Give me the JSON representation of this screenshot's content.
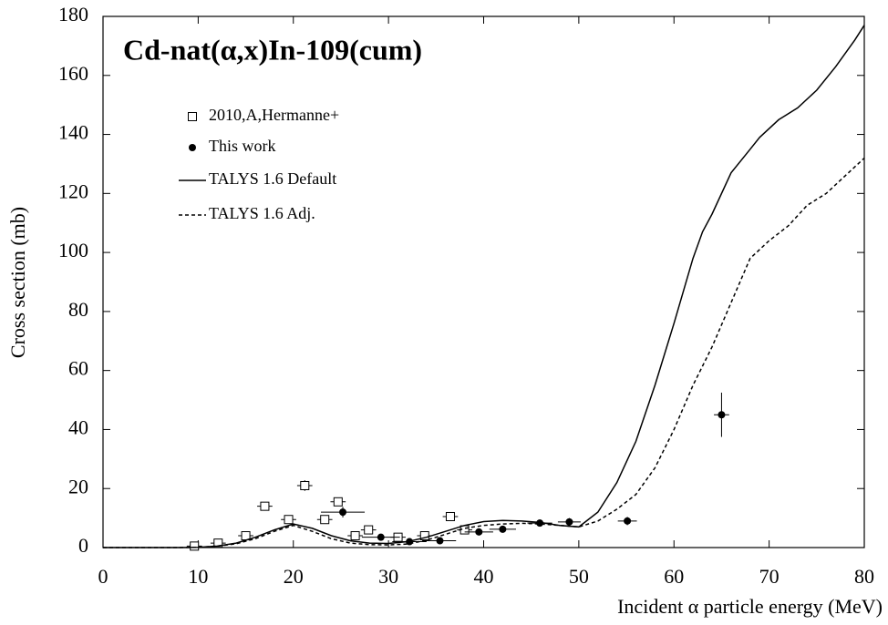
{
  "chart_data": {
    "type": "scatter",
    "title": "Cd-nat(α,x)In-109(cum)",
    "xlabel": "Incident α particle energy (MeV)",
    "ylabel": "Cross section (mb)",
    "xlim": [
      0,
      80
    ],
    "ylim": [
      0,
      180
    ],
    "xticks": [
      0,
      10,
      20,
      30,
      40,
      50,
      60,
      70,
      80
    ],
    "yticks": [
      0,
      20,
      40,
      60,
      80,
      100,
      120,
      140,
      160,
      180
    ],
    "legend": "upper left",
    "series": [
      {
        "name": "2010,A,Hermanne+",
        "type": "scatter",
        "marker": "square-open",
        "color": "#000000",
        "x": [
          9.6,
          12.1,
          15,
          17,
          19.5,
          21.2,
          23.3,
          24.7,
          26.5,
          27.9,
          31,
          33.8,
          36.5,
          38
        ],
        "values": [
          0.5,
          1.5,
          4,
          14,
          9.5,
          21,
          9.5,
          15.5,
          4,
          6,
          3.5,
          4,
          10.5,
          6
        ],
        "xerr": [
          0.8,
          0.8,
          0.8,
          0.8,
          0.8,
          0.8,
          0.8,
          0.8,
          0.8,
          0.8,
          0.8,
          0.8,
          0.8,
          0.8
        ],
        "yerr": [
          0.5,
          0.5,
          0.6,
          1.2,
          0.9,
          1.8,
          0.9,
          1.4,
          0.6,
          0.7,
          0.5,
          0.6,
          1,
          0.7
        ]
      },
      {
        "name": "This work",
        "type": "scatter",
        "marker": "circle-filled",
        "color": "#000000",
        "x": [
          25.2,
          29.2,
          32.2,
          35.4,
          39.5,
          42,
          45.9,
          49,
          55.1,
          65
        ],
        "values": [
          12,
          3.5,
          2,
          2.3,
          5.3,
          6.2,
          8.3,
          8.7,
          9,
          45
        ],
        "xerr": [
          2.3,
          2,
          1.8,
          1.7,
          1.5,
          1.4,
          1.3,
          1.2,
          1,
          0.8
        ],
        "yerr": [
          1.8,
          0.6,
          0.4,
          0.5,
          0.8,
          0.9,
          1.2,
          1.3,
          1.4,
          7.5
        ]
      },
      {
        "name": "TALYS 1.6 Default",
        "type": "line",
        "dash": "solid",
        "color": "#000000",
        "x": [
          0,
          8,
          10,
          12,
          14,
          16,
          18,
          20,
          22,
          24,
          26,
          28,
          30,
          32,
          34,
          36,
          38,
          40,
          42,
          44,
          46,
          48,
          50,
          52,
          54,
          56,
          58,
          60,
          62,
          63,
          64,
          66,
          68,
          69,
          71,
          73,
          75,
          77,
          79,
          80
        ],
        "values": [
          0,
          0,
          0.1,
          0.5,
          1.5,
          3.5,
          6,
          8,
          6.5,
          4,
          2.3,
          1.5,
          1.4,
          2,
          3.5,
          5.5,
          7.5,
          8.8,
          9.2,
          9,
          8.5,
          7.5,
          7,
          12,
          22,
          36,
          55,
          76,
          98,
          107,
          113,
          127,
          135,
          139,
          145,
          149,
          155,
          163,
          172,
          177
        ]
      },
      {
        "name": "TALYS 1.6 Adj.",
        "type": "line",
        "dash": "dashed",
        "color": "#000000",
        "x": [
          0,
          8,
          10,
          12,
          14,
          16,
          18,
          20,
          22,
          24,
          26,
          28,
          30,
          32,
          34,
          36,
          38,
          40,
          42,
          44,
          46,
          48,
          50,
          52,
          54,
          56,
          58,
          60,
          62,
          64,
          66,
          68,
          70,
          72,
          74,
          76,
          78,
          80
        ],
        "values": [
          0,
          0,
          0.1,
          0.5,
          1.3,
          3,
          5.5,
          7.5,
          5.5,
          3,
          1.5,
          1,
          0.9,
          1.2,
          2.5,
          4.5,
          6.5,
          7.5,
          8,
          8.2,
          8,
          7.5,
          7,
          9,
          13,
          18,
          27,
          40,
          55,
          68,
          83,
          98,
          104,
          109,
          116,
          120,
          126,
          132
        ]
      }
    ]
  }
}
